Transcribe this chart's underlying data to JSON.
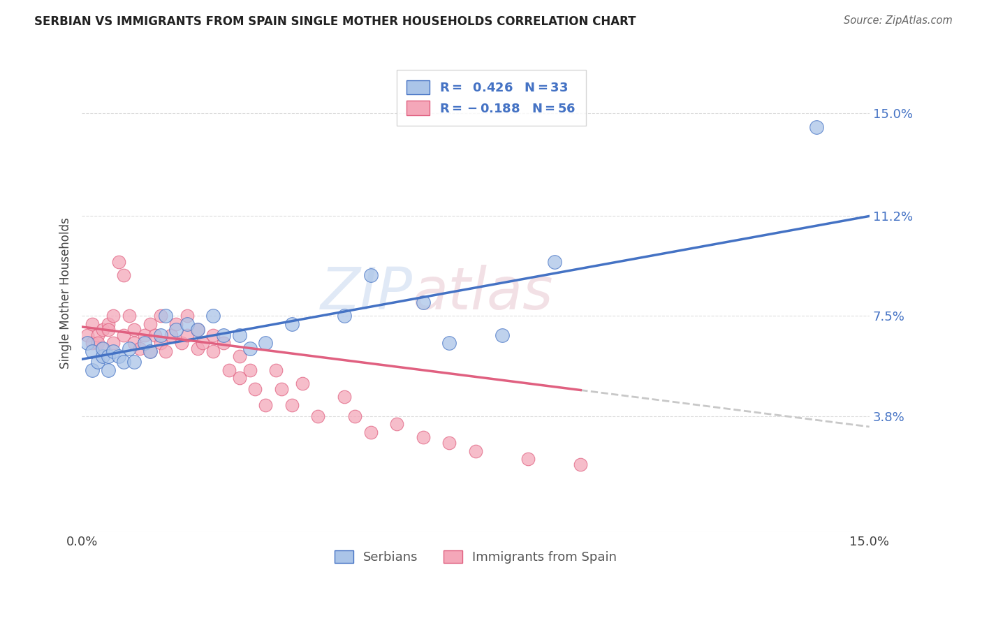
{
  "title": "SERBIAN VS IMMIGRANTS FROM SPAIN SINGLE MOTHER HOUSEHOLDS CORRELATION CHART",
  "source": "Source: ZipAtlas.com",
  "ylabel": "Single Mother Households",
  "ytick_labels": [
    "15.0%",
    "11.2%",
    "7.5%",
    "3.8%"
  ],
  "ytick_values": [
    0.15,
    0.112,
    0.075,
    0.038
  ],
  "xlim": [
    0.0,
    0.15
  ],
  "ylim": [
    -0.005,
    0.172
  ],
  "legend_r1": "R =  0.426",
  "legend_n1": "N = 33",
  "legend_n2": "N = 56",
  "serbian_color": "#aac4e8",
  "spain_color": "#f4a7b9",
  "line1_color": "#4472c4",
  "line2_color": "#e06080",
  "line2_dash_color": "#c8c8c8",
  "label_color_blue": "#4472c4",
  "watermark_zip": "ZIP",
  "watermark_atlas": "atlas",
  "grid_color": "#dddddd",
  "serbians_x": [
    0.001,
    0.002,
    0.002,
    0.003,
    0.004,
    0.004,
    0.005,
    0.005,
    0.006,
    0.007,
    0.008,
    0.009,
    0.01,
    0.012,
    0.013,
    0.015,
    0.016,
    0.018,
    0.02,
    0.022,
    0.025,
    0.027,
    0.03,
    0.032,
    0.035,
    0.04,
    0.05,
    0.055,
    0.065,
    0.07,
    0.08,
    0.09,
    0.14
  ],
  "serbians_y": [
    0.065,
    0.062,
    0.055,
    0.058,
    0.06,
    0.063,
    0.055,
    0.06,
    0.062,
    0.06,
    0.058,
    0.063,
    0.058,
    0.065,
    0.062,
    0.068,
    0.075,
    0.07,
    0.072,
    0.07,
    0.075,
    0.068,
    0.068,
    0.063,
    0.065,
    0.072,
    0.075,
    0.09,
    0.08,
    0.065,
    0.068,
    0.095,
    0.145
  ],
  "spain_x": [
    0.001,
    0.002,
    0.002,
    0.003,
    0.003,
    0.004,
    0.004,
    0.005,
    0.005,
    0.006,
    0.006,
    0.007,
    0.008,
    0.008,
    0.009,
    0.01,
    0.01,
    0.011,
    0.012,
    0.013,
    0.013,
    0.014,
    0.015,
    0.015,
    0.016,
    0.017,
    0.018,
    0.019,
    0.02,
    0.02,
    0.022,
    0.022,
    0.023,
    0.025,
    0.025,
    0.027,
    0.028,
    0.03,
    0.03,
    0.032,
    0.033,
    0.035,
    0.037,
    0.038,
    0.04,
    0.042,
    0.045,
    0.05,
    0.052,
    0.055,
    0.06,
    0.065,
    0.07,
    0.075,
    0.085,
    0.095
  ],
  "spain_y": [
    0.068,
    0.072,
    0.065,
    0.068,
    0.065,
    0.07,
    0.063,
    0.072,
    0.07,
    0.075,
    0.065,
    0.095,
    0.09,
    0.068,
    0.075,
    0.065,
    0.07,
    0.063,
    0.068,
    0.062,
    0.072,
    0.068,
    0.065,
    0.075,
    0.062,
    0.068,
    0.072,
    0.065,
    0.068,
    0.075,
    0.063,
    0.07,
    0.065,
    0.062,
    0.068,
    0.065,
    0.055,
    0.06,
    0.052,
    0.055,
    0.048,
    0.042,
    0.055,
    0.048,
    0.042,
    0.05,
    0.038,
    0.045,
    0.038,
    0.032,
    0.035,
    0.03,
    0.028,
    0.025,
    0.022,
    0.02
  ],
  "line1_x0": 0.0,
  "line1_y0": 0.059,
  "line1_x1": 0.15,
  "line1_y1": 0.112,
  "line2_x0": 0.0,
  "line2_y0": 0.071,
  "line2_x1": 0.15,
  "line2_y1": 0.034,
  "line2_solid_end": 0.095
}
